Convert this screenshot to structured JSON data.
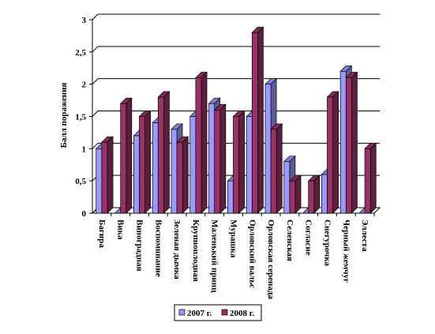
{
  "chart_data": {
    "type": "bar3d",
    "y_label": "Балл поражения",
    "categories": [
      "Багира",
      "Вика",
      "Виноградная",
      "Воспоминание",
      "Зеленая дымка",
      "Крупноплодная",
      "Маленький принц",
      "Мурашка",
      "Орловский вальс",
      "Орловская серенада",
      "Селенская",
      "Согласие",
      "Снегурочка",
      "Черный жемчуг",
      "Эллеста"
    ],
    "series": [
      {
        "name": "2007 г.",
        "color": "#9999ff",
        "values": [
          1.0,
          0,
          1.2,
          1.4,
          1.3,
          1.5,
          1.7,
          0.5,
          1.5,
          2.0,
          0.8,
          0,
          0.6,
          2.2,
          0
        ]
      },
      {
        "name": "2008 г.",
        "color": "#993366",
        "values": [
          1.1,
          1.7,
          1.5,
          1.8,
          1.1,
          2.1,
          1.6,
          1.5,
          2.8,
          1.3,
          0.5,
          0.5,
          1.8,
          2.1,
          1.0
        ]
      }
    ],
    "ylim": [
      0,
      3
    ],
    "yticks": [
      0,
      {
        "value": 0.5,
        "label": "0,5"
      },
      1,
      {
        "value": 1.5,
        "label": "1,5"
      },
      2,
      {
        "value": 2.5,
        "label": "2,5"
      },
      3
    ],
    "grid": true,
    "legend": "bottom"
  }
}
